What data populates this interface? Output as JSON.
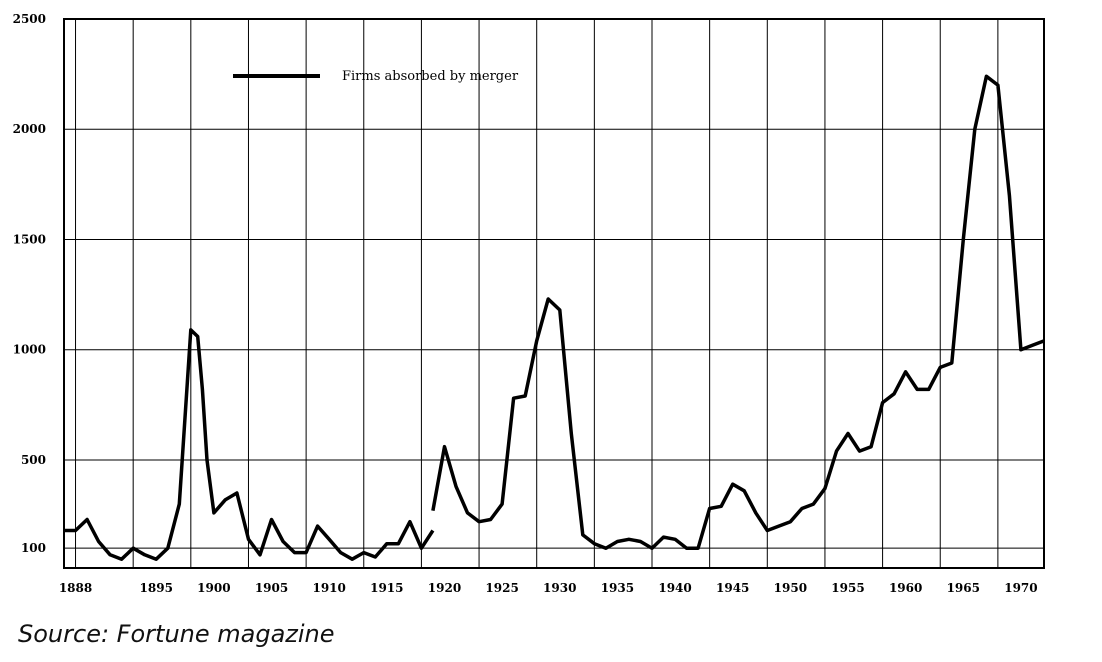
{
  "chart_data": {
    "type": "line",
    "title": "",
    "xlabel": "",
    "ylabel": "",
    "xlim": [
      1887,
      1972
    ],
    "ylim": [
      10,
      2500
    ],
    "y_ticks": [
      {
        "value": 100,
        "label": "100"
      },
      {
        "value": 500,
        "label": "500"
      },
      {
        "value": 1000,
        "label": "1000"
      },
      {
        "value": 1500,
        "label": "1500"
      },
      {
        "value": 2000,
        "label": "2000"
      },
      {
        "value": 2500,
        "label": "2500"
      }
    ],
    "x_ticks": [
      {
        "value": 1888,
        "label": "1888"
      },
      {
        "value": 1895,
        "label": "1895"
      },
      {
        "value": 1900,
        "label": "1900"
      },
      {
        "value": 1905,
        "label": "1905"
      },
      {
        "value": 1910,
        "label": "1910"
      },
      {
        "value": 1915,
        "label": "1915"
      },
      {
        "value": 1920,
        "label": "1920"
      },
      {
        "value": 1925,
        "label": "1925"
      },
      {
        "value": 1930,
        "label": "1930"
      },
      {
        "value": 1935,
        "label": "1935"
      },
      {
        "value": 1940,
        "label": "1940"
      },
      {
        "value": 1945,
        "label": "1945"
      },
      {
        "value": 1950,
        "label": "1950"
      },
      {
        "value": 1955,
        "label": "1955"
      },
      {
        "value": 1960,
        "label": "1960"
      },
      {
        "value": 1965,
        "label": "1965"
      },
      {
        "value": 1970,
        "label": "1970"
      }
    ],
    "grid": true,
    "legend_position": "top-left",
    "series": [
      {
        "name": "Firms absorbed by merger",
        "color": "#000000",
        "segments": [
          {
            "x": [
              1887,
              1888,
              1889,
              1890,
              1891,
              1892,
              1893,
              1894,
              1895,
              1896,
              1897,
              1898,
              1898.6,
              1899,
              1899.4,
              1900,
              1901,
              1902,
              1903,
              1904,
              1905,
              1906,
              1907,
              1908,
              1909,
              1910,
              1911,
              1912,
              1913,
              1914,
              1915,
              1916,
              1917,
              1918,
              1919
            ],
            "y": [
              180,
              180,
              230,
              130,
              70,
              50,
              100,
              70,
              50,
              100,
              300,
              1090,
              1060,
              820,
              500,
              260,
              320,
              350,
              140,
              70,
              230,
              130,
              80,
              80,
              200,
              140,
              80,
              50,
              80,
              60,
              120,
              120,
              220,
              100,
              180
            ]
          },
          {
            "x": [
              1919,
              1920,
              1921,
              1922,
              1923,
              1924,
              1925,
              1926,
              1927,
              1928,
              1929,
              1930,
              1931,
              1932,
              1933,
              1934,
              1935,
              1936,
              1937,
              1938,
              1939,
              1940,
              1941,
              1942,
              1943,
              1944,
              1945,
              1946,
              1947,
              1948,
              1949,
              1950,
              1951,
              1952,
              1953,
              1954,
              1955,
              1956,
              1957,
              1958,
              1959,
              1960,
              1961,
              1962,
              1963,
              1964,
              1965,
              1966,
              1967,
              1968,
              1969,
              1970,
              1971,
              1972
            ],
            "y": [
              270,
              560,
              380,
              260,
              220,
              230,
              300,
              780,
              790,
              1040,
              1230,
              1180,
              620,
              160,
              120,
              100,
              130,
              140,
              130,
              100,
              150,
              140,
              100,
              100,
              280,
              290,
              390,
              360,
              260,
              180,
              200,
              220,
              280,
              300,
              370,
              540,
              620,
              540,
              560,
              760,
              800,
              900,
              820,
              820,
              920,
              940,
              1500,
              2000,
              2240,
              2200,
              1700,
              1000,
              1020,
              1040
            ]
          }
        ]
      }
    ]
  },
  "source": "Source: Fortune magazine"
}
